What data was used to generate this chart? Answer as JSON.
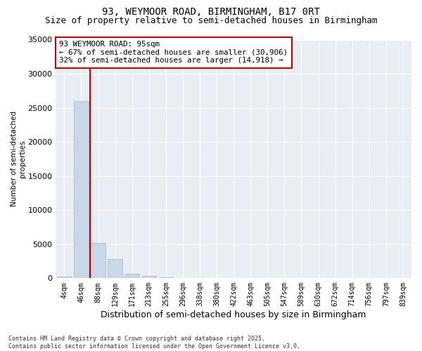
{
  "title_line1": "93, WEYMOOR ROAD, BIRMINGHAM, B17 0RT",
  "title_line2": "Size of property relative to semi-detached houses in Birmingham",
  "xlabel": "Distribution of semi-detached houses by size in Birmingham",
  "ylabel": "Number of semi-detached\nproperties",
  "categories": [
    "4sqm",
    "46sqm",
    "88sqm",
    "129sqm",
    "171sqm",
    "213sqm",
    "255sqm",
    "296sqm",
    "338sqm",
    "380sqm",
    "422sqm",
    "463sqm",
    "505sqm",
    "547sqm",
    "589sqm",
    "630sqm",
    "672sqm",
    "714sqm",
    "756sqm",
    "797sqm",
    "839sqm"
  ],
  "values": [
    200,
    26000,
    5200,
    2800,
    700,
    350,
    100,
    50,
    10,
    2,
    1,
    0,
    0,
    0,
    0,
    0,
    0,
    0,
    0,
    0,
    0
  ],
  "bar_color": "#c8d8e8",
  "bar_edgecolor": "#a0b8d0",
  "vline_color": "#cc0000",
  "annotation_title": "93 WEYMOOR ROAD: 95sqm",
  "annotation_left": "← 67% of semi-detached houses are smaller (30,906)",
  "annotation_right": "32% of semi-detached houses are larger (14,918) →",
  "annotation_box_color": "#cc0000",
  "ylim": [
    0,
    35000
  ],
  "yticks": [
    0,
    5000,
    10000,
    15000,
    20000,
    25000,
    30000,
    35000
  ],
  "background_color": "#e8eef4",
  "footer_line1": "Contains HM Land Registry data © Crown copyright and database right 2025.",
  "footer_line2": "Contains public sector information licensed under the Open Government Licence v3.0.",
  "title_fontsize": 10,
  "subtitle_fontsize": 9
}
